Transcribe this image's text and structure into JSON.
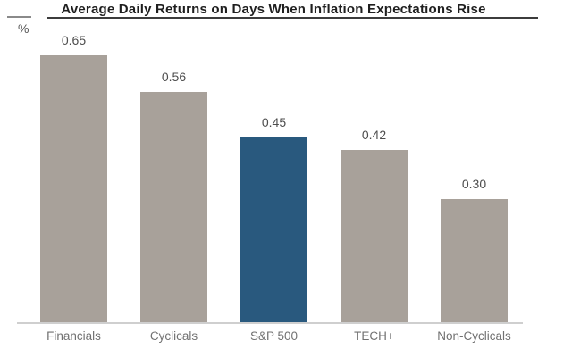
{
  "chart_data": {
    "type": "bar",
    "title": "Average Daily Returns on Days When Inflation Expectations Rise",
    "unit_label": "%",
    "categories": [
      "Financials",
      "Cyclicals",
      "S&P 500",
      "TECH+",
      "Non-Cyclicals"
    ],
    "values": [
      0.65,
      0.56,
      0.45,
      0.42,
      0.3
    ],
    "value_labels": [
      "0.65",
      "0.56",
      "0.45",
      "0.42",
      "0.30"
    ],
    "highlighted_category": "S&P 500",
    "xlabel": "",
    "ylabel": "%",
    "ylim": [
      0,
      0.7
    ],
    "grid": false,
    "legend": false,
    "colors": {
      "bar": "#a8a19a",
      "highlight": "#29597e",
      "title": "#1f1f1f",
      "value_label": "#4d4d4d",
      "category_label": "#717171",
      "axis_line": "#cfcfcf",
      "background": "#ffffff"
    }
  }
}
